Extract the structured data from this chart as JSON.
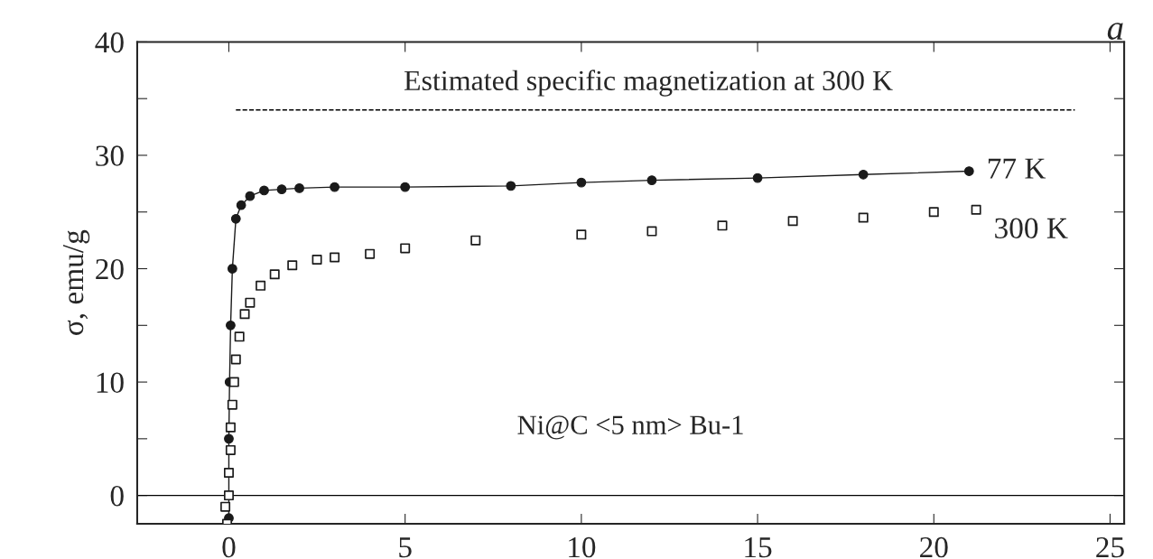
{
  "chart_data": {
    "type": "line",
    "title": "a",
    "ylabel": "σ, emu/g",
    "xlim": [
      -2.6,
      25.4
    ],
    "xticks": [
      0,
      5,
      10,
      15,
      20,
      25
    ],
    "ylim": [
      -2.5,
      40
    ],
    "yticks": [
      0,
      {
        "value": 5,
        "label": null
      },
      10,
      {
        "value": 15,
        "label": null
      },
      20,
      {
        "value": 25,
        "label": null
      },
      30,
      {
        "value": 35,
        "label": null
      },
      40
    ],
    "grid": false,
    "legend": "right",
    "series": [
      {
        "name": "77 K",
        "marker": "circle",
        "color": "#1a1a1a",
        "x": [
          0.0,
          0.0,
          0.02,
          0.05,
          0.1,
          0.2,
          0.35,
          0.6,
          1.0,
          1.5,
          2.0,
          3.0,
          5.0,
          8.0,
          10.0,
          12.0,
          15.0,
          18.0,
          21.0
        ],
        "values": [
          -2,
          5,
          10,
          15,
          20,
          24.4,
          25.6,
          26.4,
          26.9,
          27.0,
          27.1,
          27.2,
          27.2,
          27.3,
          27.6,
          27.8,
          28.0,
          28.3,
          28.6
        ]
      },
      {
        "name": "300 K",
        "type": "scatter",
        "marker": "square",
        "color": "#1a1a1a",
        "x": [
          -0.05,
          -0.1,
          0.0,
          0.0,
          0.05,
          0.05,
          0.1,
          0.15,
          0.2,
          0.3,
          0.45,
          0.6,
          0.9,
          1.3,
          1.8,
          2.5,
          3.0,
          4.0,
          5.0,
          7.0,
          10.0,
          12.0,
          14.0,
          16.0,
          18.0,
          20.0,
          21.2
        ],
        "values": [
          -2.5,
          -1,
          0,
          2,
          4,
          6,
          8,
          10,
          12,
          14,
          16,
          17,
          18.5,
          19.5,
          20.3,
          20.8,
          21,
          21.3,
          21.8,
          22.5,
          23,
          23.3,
          23.8,
          24.2,
          24.5,
          25,
          25.2
        ]
      }
    ],
    "ref_lines": [
      {
        "axis": "y",
        "value": 34,
        "label": "Estimated specific magnetization at 300 K",
        "line_style": "dashed"
      },
      {
        "axis": "y",
        "value": 0,
        "line_style": "solid"
      }
    ],
    "annotations": [
      "Ni@C <5 nm> Bu-1"
    ]
  }
}
